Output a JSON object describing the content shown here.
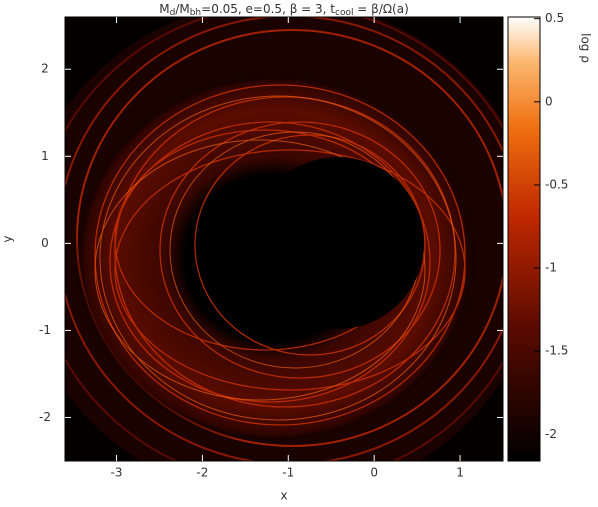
{
  "chart_data": {
    "type": "image",
    "title": [
      "M",
      "d",
      "/M",
      "bh",
      "=0.05, e=0.5, β = 3, t",
      "cool",
      " = β/Ω(a)"
    ],
    "xlabel": "x",
    "ylabel": "y",
    "xlim": [
      -3.6,
      1.5
    ],
    "xticks": [
      -3,
      -2,
      -1,
      0,
      1
    ],
    "ylim": [
      -2.5,
      2.6
    ],
    "yticks": [
      -2,
      -1,
      0,
      1,
      2
    ],
    "colorbar": {
      "label": "log ρ",
      "lim": [
        -2.16,
        0.51
      ],
      "ticks": [
        -2,
        -1.5,
        -1,
        -0.5,
        0,
        0.5
      ]
    }
  }
}
